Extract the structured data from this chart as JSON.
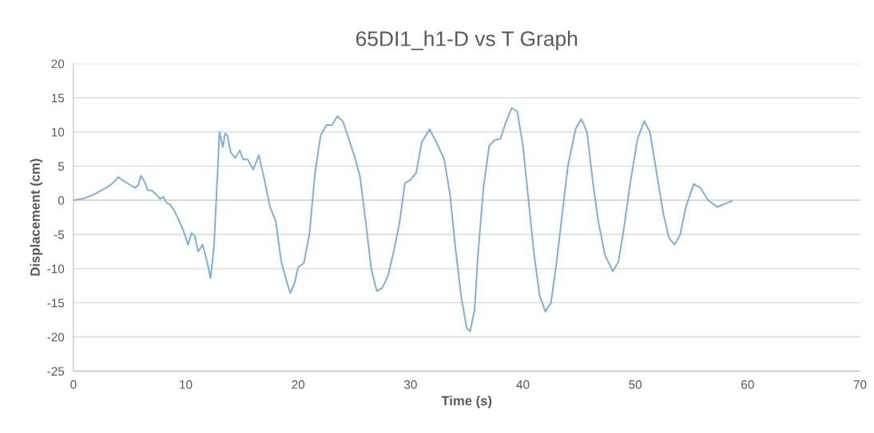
{
  "chart_data": {
    "type": "line",
    "title": "65DI1_h1-D vs T Graph",
    "xlabel": "Time (s)",
    "ylabel": "Displacement (cm)",
    "xlim": [
      0,
      70
    ],
    "xticks": [
      0,
      10,
      20,
      30,
      40,
      50,
      60,
      70
    ],
    "ylim": [
      -25,
      20
    ],
    "yticks": [
      -25,
      -20,
      -15,
      -10,
      -5,
      0,
      5,
      10,
      15,
      20
    ],
    "grid": "y",
    "legend": false,
    "marker": "none",
    "line_style": "solid",
    "series": [
      {
        "color": "#7aaee0",
        "x": [
          0,
          1,
          2,
          3,
          3.5,
          4,
          4.5,
          5,
          5.5,
          5.8,
          6,
          6.4,
          6.6,
          7,
          7.4,
          7.7,
          8,
          8.3,
          8.6,
          9,
          9.4,
          9.8,
          10.2,
          10.5,
          10.8,
          11.1,
          11.5,
          11.9,
          12.2,
          12.5,
          12.8,
          13.0,
          13.2,
          13.3,
          13.5,
          13.7,
          14,
          14.4,
          14.8,
          15.1,
          15.5,
          16,
          16.5,
          17,
          17.5,
          18,
          18.5,
          19,
          19.3,
          19.7,
          20,
          20.5,
          21,
          21.5,
          22,
          22.5,
          23,
          23.5,
          24,
          24.5,
          25,
          25.5,
          26,
          26.5,
          27,
          27.5,
          28,
          28.5,
          29,
          29.5,
          30,
          30.5,
          31,
          31.7,
          32.3,
          33,
          33.5,
          34,
          34.5,
          35,
          35.3,
          35.7,
          36,
          36.5,
          37,
          37.5,
          38,
          38.5,
          39,
          39.5,
          40,
          40.5,
          41,
          41.5,
          42,
          42.5,
          43,
          43.5,
          44,
          44.7,
          45.2,
          45.7,
          46.2,
          46.7,
          47.3,
          48,
          48.5,
          49,
          49.5,
          50.2,
          50.8,
          51.3,
          52,
          52.5,
          53,
          53.5,
          54,
          54.5,
          55.2,
          55.8,
          56.5,
          57.3,
          58,
          58.6
        ],
        "values": [
          0,
          0.3,
          1,
          1.9,
          2.5,
          3.4,
          2.8,
          2.3,
          1.8,
          2.3,
          3.6,
          2.5,
          1.5,
          1.4,
          0.8,
          0.2,
          0.5,
          -0.4,
          -0.6,
          -1.6,
          -3,
          -4.5,
          -6.5,
          -4.8,
          -5.2,
          -7.5,
          -6.5,
          -9,
          -11.4,
          -7,
          3,
          10,
          8.5,
          7.8,
          9.8,
          9.5,
          7,
          6.2,
          7.3,
          6,
          6,
          4.5,
          6.6,
          3,
          -1,
          -3,
          -9,
          -12,
          -13.6,
          -12,
          -9.8,
          -9.2,
          -5,
          4,
          9.5,
          11,
          11,
          12.3,
          11.5,
          9,
          6.5,
          3.5,
          -3,
          -10,
          -13.3,
          -12.8,
          -11,
          -7.5,
          -3.5,
          2.5,
          3,
          4,
          8.5,
          10.4,
          8.5,
          6,
          1,
          -7,
          -14,
          -18.7,
          -19.2,
          -16,
          -8,
          2,
          8,
          8.8,
          9,
          11.5,
          13.5,
          13,
          8,
          0,
          -8,
          -14,
          -16.3,
          -15,
          -9,
          -2,
          5,
          10.5,
          11.9,
          10,
          3,
          -3,
          -8,
          -10.4,
          -9,
          -4,
          2,
          9,
          11.6,
          10,
          3,
          -2,
          -5.5,
          -6.5,
          -5,
          -1,
          2.4,
          1.8,
          0,
          -1,
          -0.5,
          -0.1
        ]
      }
    ]
  }
}
